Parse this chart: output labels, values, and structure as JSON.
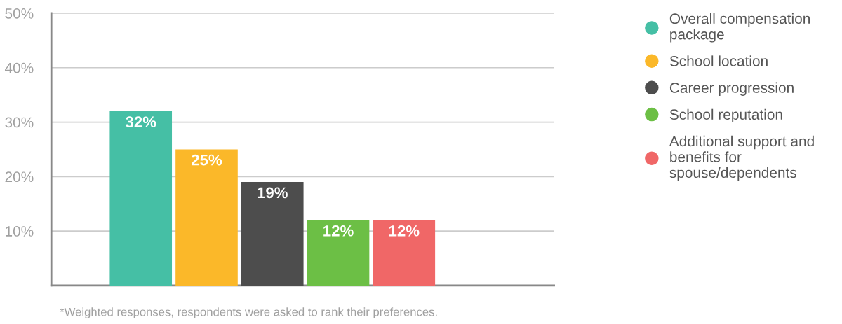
{
  "chart_data": {
    "type": "bar",
    "categories": [
      null,
      null,
      null,
      null,
      null
    ],
    "series": [
      {
        "name": "Overall compensation package",
        "color": "#45bfa5",
        "values": [
          32,
          null,
          null,
          null,
          null
        ]
      },
      {
        "name": "School location",
        "color": "#fbb829",
        "values": [
          null,
          25,
          null,
          null,
          null
        ]
      },
      {
        "name": "Career progression",
        "color": "#4d4d4d",
        "values": [
          null,
          null,
          19,
          null,
          null
        ]
      },
      {
        "name": "School reputation",
        "color": "#6cbf45",
        "values": [
          null,
          null,
          null,
          12,
          null
        ]
      },
      {
        "name": "Additional support and benefits for spouse/dependents",
        "color": "#f06767",
        "values": [
          null,
          null,
          null,
          null,
          12
        ]
      }
    ],
    "ylim": [
      0,
      50
    ],
    "yticks": [
      {
        "value": 10,
        "label": "10%"
      },
      {
        "value": 20,
        "label": "20%"
      },
      {
        "value": 30,
        "label": "30%"
      },
      {
        "value": 40,
        "label": "40%"
      },
      {
        "value": 50,
        "label": "50%"
      }
    ],
    "value_labels": [
      "32%",
      "25%",
      "19%",
      "12%",
      "12%"
    ],
    "stacked": true,
    "grid": "y",
    "legend": "right",
    "marker": "circle",
    "tick_labels": "y",
    "annotations": [
      "*Weighted responses, respondents were asked to rank their preferences."
    ]
  }
}
